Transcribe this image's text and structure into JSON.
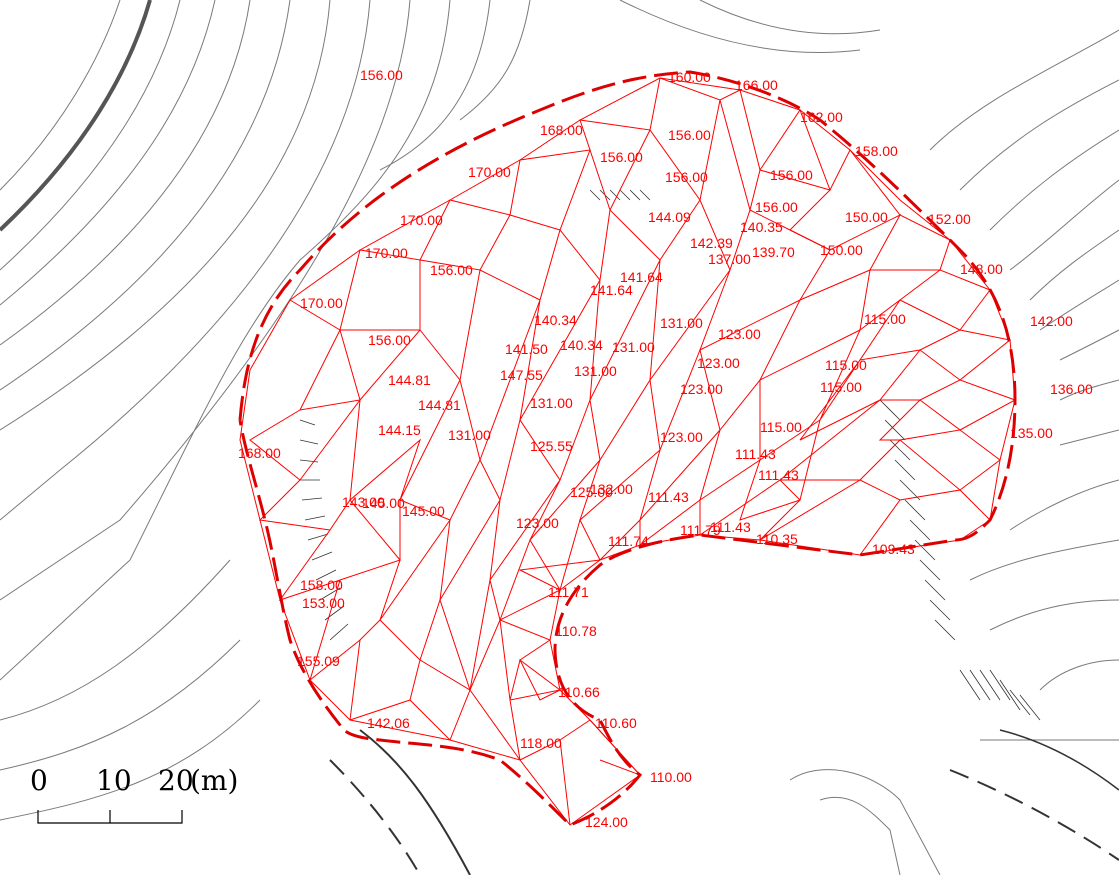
{
  "colors": {
    "background": "#ffffff",
    "contour": "#555555",
    "contour_light": "#9a9a9a",
    "triangulation": "#ff0000",
    "boundary": "#dd0000",
    "hatch": "#222222"
  },
  "scale_bar": {
    "ticks": [
      "0",
      "10",
      "20"
    ],
    "unit": "(m)"
  },
  "elevation_labels": [
    "160.00",
    "166.00",
    "162.00",
    "158.00",
    "152.00",
    "148.00",
    "142.00",
    "136.00",
    "135.00",
    "168.00",
    "156.00",
    "156.00",
    "156.00",
    "156.00",
    "156.00",
    "156.00",
    "150.00",
    "150.00",
    "170.00",
    "170.00",
    "170.00",
    "170.00",
    "168.00",
    "156.00",
    "156.00",
    "144.09",
    "140.35",
    "142.39",
    "137.00",
    "139.70",
    "141.64",
    "141.64",
    "140.34",
    "140.34",
    "131.00",
    "131.00",
    "131.00",
    "131.00",
    "131.00",
    "123.00",
    "123.00",
    "123.00",
    "123.00",
    "115.00",
    "115.00",
    "115.00",
    "115.00",
    "111.43",
    "111.43",
    "111.43",
    "111.43",
    "110.35",
    "109.43",
    "144.81",
    "144.81",
    "141.50",
    "147.55",
    "144.15",
    "143.00",
    "145.00",
    "145.00",
    "153.00",
    "158.00",
    "155.09",
    "142.06",
    "132.00",
    "125.55",
    "125.00",
    "123.00",
    "111.79",
    "111.74",
    "111.71",
    "110.78",
    "110.66",
    "110.60",
    "110.00",
    "118.00",
    "124.00"
  ]
}
